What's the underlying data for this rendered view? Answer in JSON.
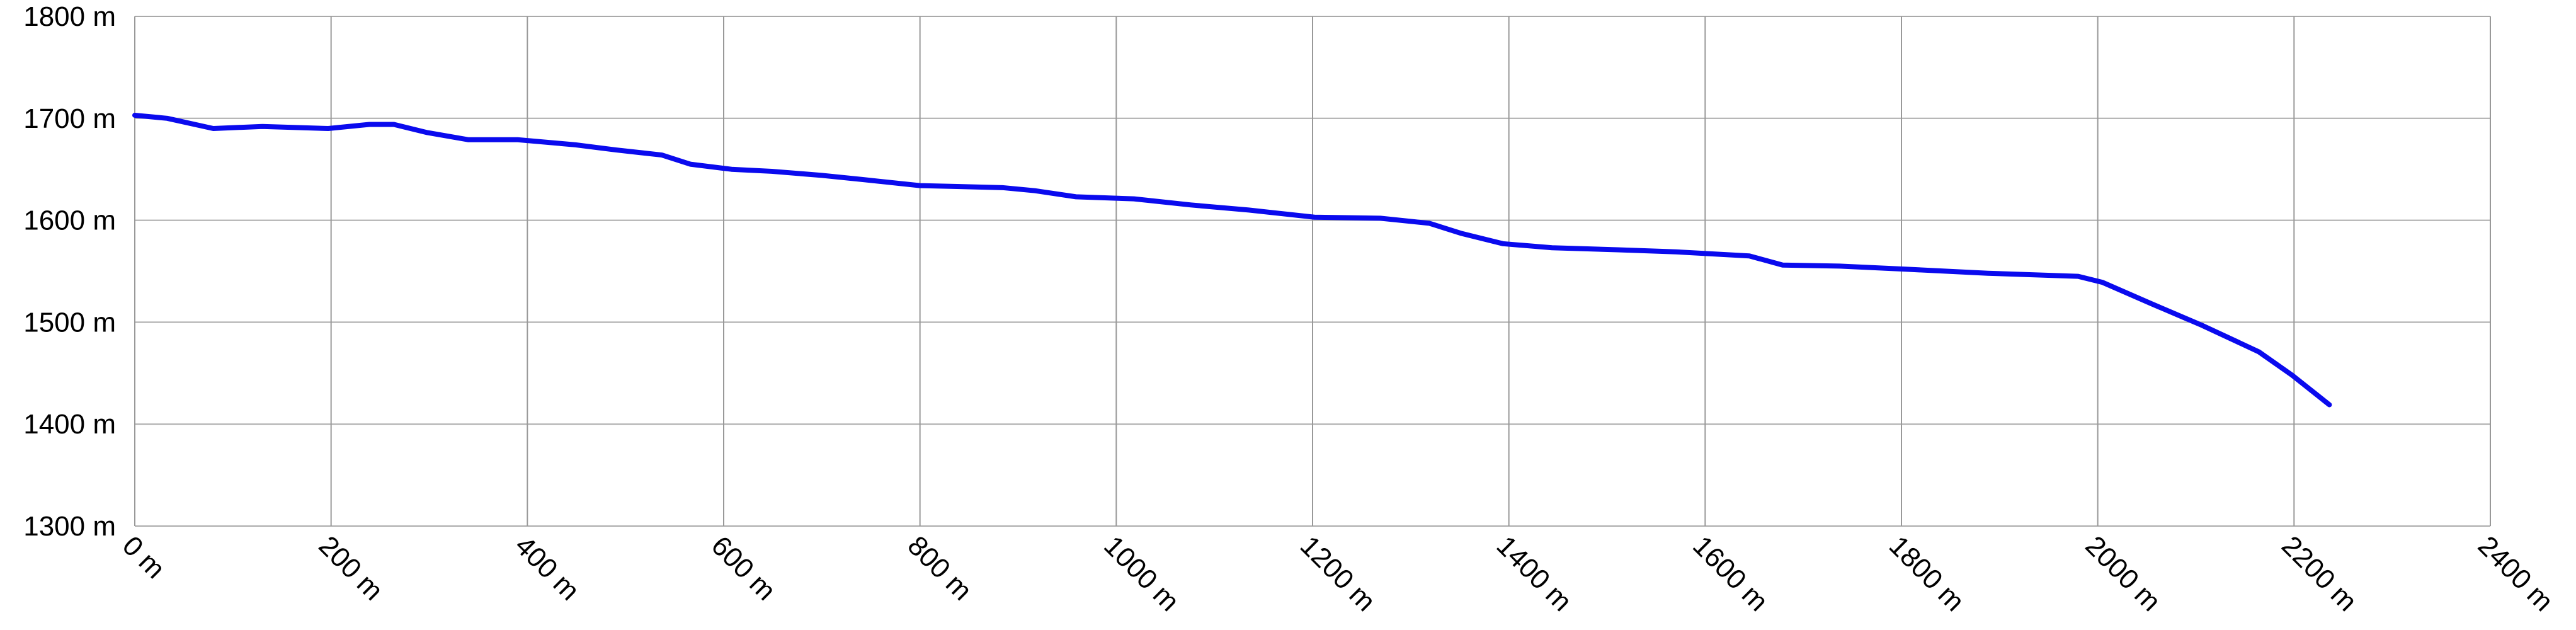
{
  "chart_data": {
    "type": "line",
    "x": [
      0,
      33,
      80,
      130,
      197,
      239,
      264,
      298,
      340,
      390,
      449,
      490,
      537,
      566,
      608,
      649,
      700,
      741,
      800,
      884,
      917,
      959,
      1018,
      1076,
      1135,
      1202,
      1269,
      1319,
      1352,
      1394,
      1444,
      1511,
      1570,
      1645,
      1679,
      1737,
      1804,
      1888,
      1980,
      2005,
      2055,
      2106,
      2164,
      2198,
      2236
    ],
    "series": [
      {
        "color": "#0a0aee",
        "values": [
          1703,
          1700,
          1690,
          1692,
          1690,
          1694,
          1694,
          1686,
          1679,
          1679,
          1674,
          1669,
          1664,
          1655,
          1650,
          1648,
          1644,
          1640,
          1634,
          1632,
          1629,
          1623,
          1621,
          1615,
          1610,
          1603,
          1602,
          1597,
          1587,
          1577,
          1573,
          1571,
          1569,
          1565,
          1556,
          1555,
          1552,
          1548,
          1545,
          1539,
          1518,
          1497,
          1471,
          1448,
          1419
        ]
      }
    ],
    "xlim": [
      0,
      2400
    ],
    "xticks": [
      {
        "value": 0,
        "label": "0 m"
      },
      {
        "value": 200,
        "label": "200 m"
      },
      {
        "value": 400,
        "label": "400 m"
      },
      {
        "value": 600,
        "label": "600 m"
      },
      {
        "value": 800,
        "label": "800 m"
      },
      {
        "value": 1000,
        "label": "1000 m"
      },
      {
        "value": 1200,
        "label": "1200 m"
      },
      {
        "value": 1400,
        "label": "1400 m"
      },
      {
        "value": 1600,
        "label": "1600 m"
      },
      {
        "value": 1800,
        "label": "1800 m"
      },
      {
        "value": 2000,
        "label": "2000 m"
      },
      {
        "value": 2200,
        "label": "2200 m"
      },
      {
        "value": 2400,
        "label": "2400 m"
      }
    ],
    "ylim": [
      1300,
      1800
    ],
    "yticks": [
      {
        "value": 1300,
        "label": "1300 m"
      },
      {
        "value": 1400,
        "label": "1400 m"
      },
      {
        "value": 1500,
        "label": "1500 m"
      },
      {
        "value": 1600,
        "label": "1600 m"
      },
      {
        "value": 1700,
        "label": "1700 m"
      },
      {
        "value": 1800,
        "label": "1800 m"
      }
    ],
    "grid": true
  }
}
